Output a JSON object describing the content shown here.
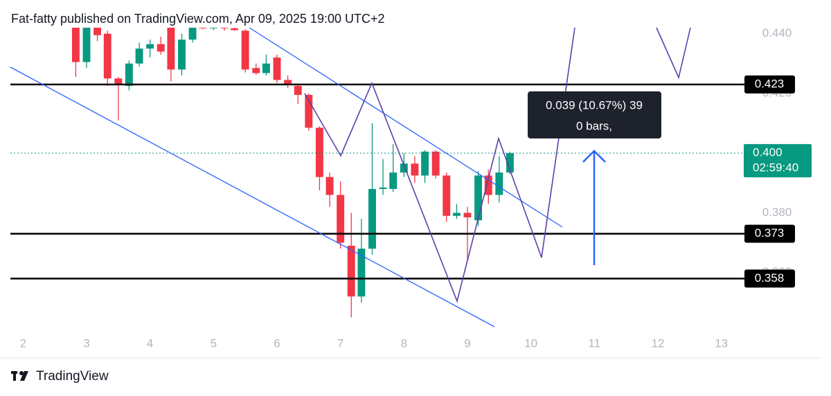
{
  "header": "Fat-fatty published on TradingView.com, Apr 09, 2025 19:00 UTC+2",
  "footer": "TradingView",
  "chart_data": {
    "type": "candlestick",
    "xlim": [
      1.8,
      13.2
    ],
    "xticks": [
      2,
      3,
      4,
      5,
      6,
      7,
      8,
      9,
      10,
      11,
      12,
      13
    ],
    "ylim": [
      0.34,
      0.442
    ],
    "yticks": [
      {
        "value": 0.44,
        "label": "0.440"
      },
      {
        "value": 0.42,
        "label": "0.420"
      },
      {
        "value": 0.38,
        "label": "0.380"
      },
      {
        "value": 0.36,
        "label": "0.360"
      }
    ],
    "up_color": "#089981",
    "down_color": "#f23645",
    "x": [
      2.83,
      3.0,
      3.17,
      3.33,
      3.5,
      3.67,
      3.83,
      4.0,
      4.17,
      4.33,
      4.5,
      4.67,
      4.83,
      5.0,
      5.17,
      5.33,
      5.5,
      5.67,
      5.83,
      6.0,
      6.17,
      6.33,
      6.5,
      6.67,
      6.83,
      7.0,
      7.17,
      7.33,
      7.5,
      7.67,
      7.83,
      8.0,
      8.17,
      8.33,
      8.5,
      8.67,
      8.83,
      9.0,
      9.17,
      9.33,
      9.5,
      9.67
    ],
    "open": [
      0.442,
      0.4305,
      0.442,
      0.44,
      0.425,
      0.4225,
      0.43,
      0.435,
      0.4365,
      0.442,
      0.428,
      0.438,
      0.4425,
      0.4418,
      0.4425,
      0.4418,
      0.441,
      0.4285,
      0.4268,
      0.432,
      0.4245,
      0.4225,
      0.4195,
      0.4085,
      0.392,
      0.386,
      0.369,
      0.352,
      0.368,
      0.388,
      0.388,
      0.3935,
      0.3965,
      0.3925,
      0.4005,
      0.3925,
      0.379,
      0.38,
      0.3775,
      0.3925,
      0.386,
      0.3935
    ],
    "high": [
      0.4425,
      0.4425,
      0.4425,
      0.441,
      0.4255,
      0.431,
      0.437,
      0.438,
      0.439,
      0.4425,
      0.44,
      0.4425,
      0.443,
      0.443,
      0.443,
      0.4425,
      0.4415,
      0.43,
      0.433,
      0.433,
      0.426,
      0.4232,
      0.42,
      0.409,
      0.3935,
      0.3905,
      0.38,
      0.378,
      0.41,
      0.398,
      0.403,
      0.4,
      0.399,
      0.401,
      0.401,
      0.3935,
      0.383,
      0.382,
      0.394,
      0.3945,
      0.399,
      0.4005
    ],
    "low": [
      0.4255,
      0.4285,
      0.4375,
      0.4225,
      0.411,
      0.421,
      0.429,
      0.432,
      0.433,
      0.424,
      0.426,
      0.437,
      0.4415,
      0.4412,
      0.441,
      0.441,
      0.427,
      0.4262,
      0.426,
      0.4235,
      0.4218,
      0.4165,
      0.4075,
      0.3875,
      0.382,
      0.368,
      0.345,
      0.35,
      0.366,
      0.386,
      0.387,
      0.392,
      0.39,
      0.39,
      0.3915,
      0.377,
      0.378,
      0.364,
      0.3755,
      0.383,
      0.3835,
      0.393
    ],
    "close": [
      0.4305,
      0.442,
      0.4395,
      0.425,
      0.423,
      0.43,
      0.435,
      0.4365,
      0.434,
      0.428,
      0.438,
      0.442,
      0.4418,
      0.4425,
      0.4418,
      0.4412,
      0.428,
      0.4268,
      0.43,
      0.4245,
      0.423,
      0.4195,
      0.4085,
      0.392,
      0.386,
      0.37,
      0.352,
      0.368,
      0.388,
      0.3885,
      0.3935,
      0.3965,
      0.3925,
      0.4005,
      0.3925,
      0.379,
      0.38,
      0.3785,
      0.3925,
      0.386,
      0.3935,
      0.4
    ],
    "levels": [
      0.423,
      0.373,
      0.358
    ],
    "last_price": {
      "value": 0.4,
      "label": "0.400"
    },
    "countdown": "02:59:40",
    "tooltip": [
      "0.039 (10.67%) 39",
      "0 bars,"
    ]
  }
}
